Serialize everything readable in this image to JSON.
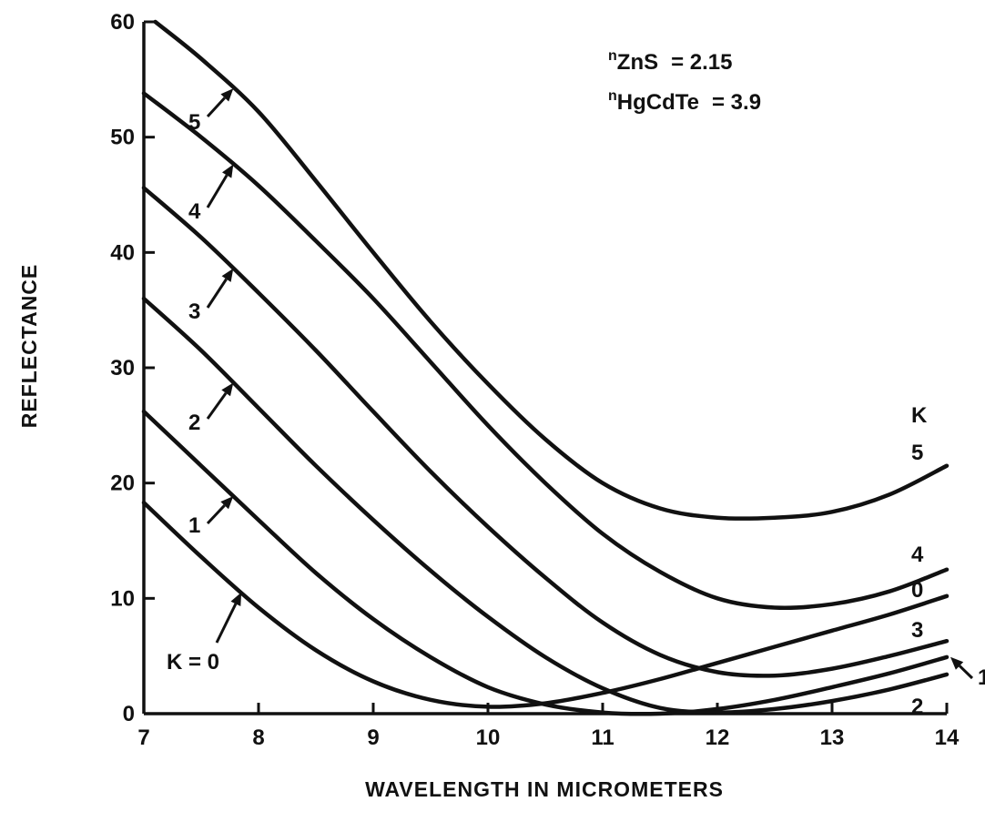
{
  "chart_data": {
    "type": "line",
    "title": "",
    "xlabel": "WAVELENGTH IN MICROMETERS",
    "ylabel": "REFLECTANCE",
    "xlim": [
      7,
      14
    ],
    "ylim": [
      0,
      60
    ],
    "x_ticks": [
      7,
      8,
      9,
      10,
      11,
      12,
      13,
      14
    ],
    "y_ticks": [
      0,
      10,
      20,
      30,
      40,
      50,
      60
    ],
    "grid": false,
    "legend": "none",
    "annotations": {
      "n_zns_sub": "ZnS",
      "n_zns_value": "= 2.15",
      "n_hgcdte_sub": "HgCdTe",
      "n_hgcdte_value": "= 3.9",
      "n_prefix": "n",
      "right_k_header": "K",
      "k0_label": "K = 0"
    },
    "series": [
      {
        "name": "0",
        "curve_label": "K = 0",
        "right_label": "0",
        "x": [
          7.0,
          7.5,
          8.0,
          8.5,
          9.0,
          9.5,
          10.0,
          10.5,
          11.0,
          11.5,
          12.0,
          12.5,
          13.0,
          13.5,
          14.0
        ],
        "y": [
          18.3,
          13.6,
          9.2,
          5.5,
          2.8,
          1.2,
          0.6,
          0.9,
          1.8,
          3.0,
          4.4,
          5.8,
          7.2,
          8.6,
          10.2
        ]
      },
      {
        "name": "1",
        "curve_label": "1",
        "right_label": "1",
        "x": [
          7.0,
          7.5,
          8.0,
          8.5,
          9.0,
          9.5,
          10.0,
          10.5,
          11.0,
          11.5,
          12.0,
          12.5,
          13.0,
          13.5,
          14.0
        ],
        "y": [
          26.2,
          21.5,
          16.8,
          12.2,
          8.2,
          4.9,
          2.3,
          0.8,
          0.1,
          0.0,
          0.4,
          1.2,
          2.3,
          3.5,
          4.9
        ]
      },
      {
        "name": "2",
        "curve_label": "2",
        "right_label": "2",
        "x": [
          7.0,
          7.5,
          8.0,
          8.5,
          9.0,
          9.5,
          10.0,
          10.5,
          11.0,
          11.5,
          12.0,
          12.5,
          13.0,
          13.5,
          14.0
        ],
        "y": [
          36.0,
          31.5,
          26.5,
          21.5,
          16.8,
          12.4,
          8.4,
          4.9,
          2.2,
          0.5,
          0.1,
          0.4,
          1.1,
          2.1,
          3.4
        ]
      },
      {
        "name": "3",
        "curve_label": "3",
        "right_label": "3",
        "x": [
          7.0,
          7.5,
          8.0,
          8.5,
          9.0,
          9.5,
          10.0,
          10.5,
          11.0,
          11.5,
          12.0,
          12.5,
          13.0,
          13.5,
          14.0
        ],
        "y": [
          45.6,
          41.3,
          36.5,
          31.5,
          26.2,
          21.0,
          16.2,
          11.8,
          7.9,
          5.1,
          3.6,
          3.3,
          3.9,
          5.0,
          6.3
        ]
      },
      {
        "name": "4",
        "curve_label": "4",
        "right_label": "4",
        "x": [
          7.0,
          7.5,
          8.0,
          8.5,
          9.0,
          9.5,
          10.0,
          10.5,
          11.0,
          11.5,
          12.0,
          12.5,
          13.0,
          13.5,
          14.0
        ],
        "y": [
          53.8,
          50.0,
          45.8,
          41.0,
          36.0,
          30.5,
          25.0,
          20.0,
          15.6,
          12.3,
          10.0,
          9.2,
          9.5,
          10.6,
          12.5
        ]
      },
      {
        "name": "5",
        "curve_label": "5",
        "right_label": "5",
        "x": [
          7.1,
          7.5,
          8.0,
          8.5,
          9.0,
          9.5,
          10.0,
          10.5,
          11.0,
          11.5,
          12.0,
          12.5,
          13.0,
          13.5,
          14.0
        ],
        "y": [
          60.0,
          56.8,
          52.2,
          46.2,
          40.0,
          34.0,
          28.6,
          23.8,
          20.0,
          17.8,
          17.0,
          17.0,
          17.5,
          19.0,
          21.5
        ]
      }
    ]
  }
}
